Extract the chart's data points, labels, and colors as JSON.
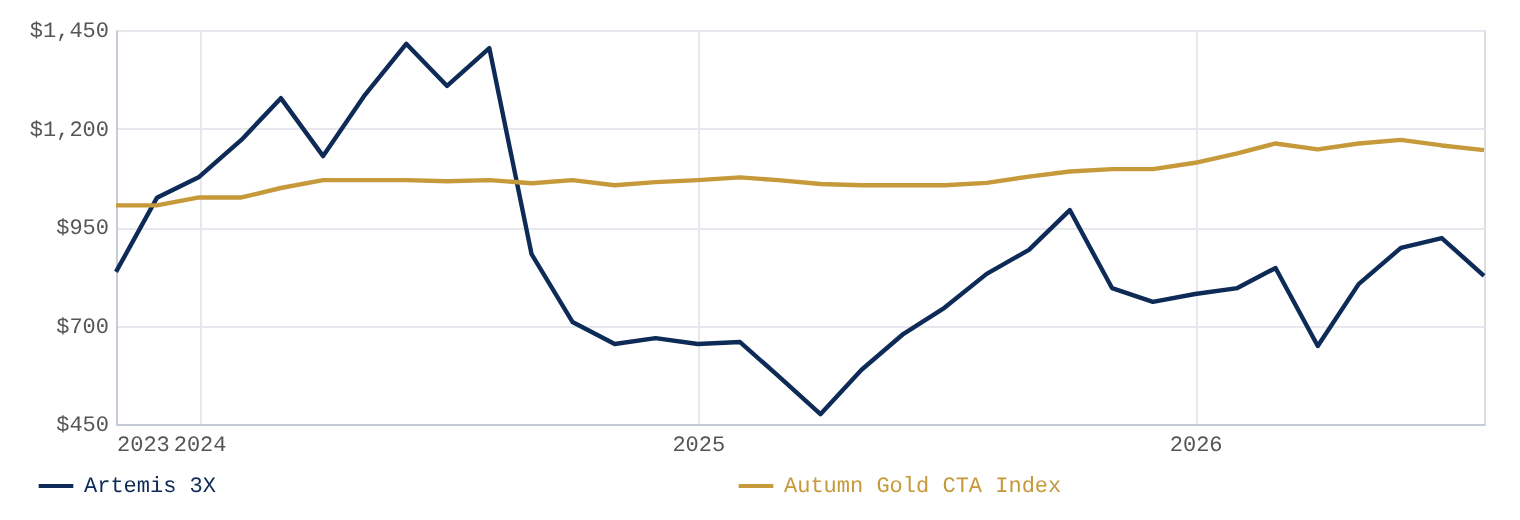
{
  "chart_data": {
    "type": "line",
    "x": [
      "2023-11-01",
      "2023-12-01",
      "2024-01-01",
      "2024-02-01",
      "2024-03-01",
      "2024-04-01",
      "2024-05-01",
      "2024-06-01",
      "2024-07-01",
      "2024-08-01",
      "2024-09-01",
      "2024-10-01",
      "2024-11-01",
      "2024-12-01",
      "2025-01-01",
      "2025-02-01",
      "2025-03-01",
      "2025-04-01",
      "2025-05-01",
      "2025-06-01",
      "2025-07-01",
      "2025-08-01",
      "2025-09-01",
      "2025-10-01",
      "2025-11-01",
      "2025-12-01",
      "2026-01-01",
      "2026-02-01",
      "2026-03-01",
      "2026-04-01",
      "2026-05-01",
      "2026-06-01",
      "2026-07-01",
      "2026-08-01"
    ],
    "series": [
      {
        "name": "Artemis 3X",
        "color": "#0d2b56",
        "values": [
          836,
          1024,
          1077,
          1171,
          1277,
          1130,
          1282,
          1415,
          1308,
          1404,
          881,
          709,
          653,
          668,
          653,
          658,
          572,
          475,
          587,
          679,
          745,
          831,
          892,
          993,
          795,
          760,
          780,
          795,
          846,
          648,
          805,
          897,
          922,
          826
        ]
      },
      {
        "name": "Autumn Gold CTA Index",
        "color": "#c6993a",
        "values": [
          1005,
          1005,
          1025,
          1025,
          1049,
          1069,
          1069,
          1069,
          1066,
          1069,
          1061,
          1069,
          1056,
          1064,
          1069,
          1076,
          1069,
          1059,
          1056,
          1056,
          1056,
          1062,
          1078,
          1091,
          1097,
          1097,
          1113,
          1137,
          1162,
          1147,
          1162,
          1171,
          1157,
          1145
        ]
      }
    ],
    "xlim": [
      "2023-11-01",
      "2026-08-01"
    ],
    "xticks": [
      {
        "value": "2023-11-01",
        "label": "2023"
      },
      {
        "value": "2024-01-01",
        "label": "2024"
      },
      {
        "value": "2025-01-01",
        "label": "2025"
      },
      {
        "value": "2026-01-01",
        "label": "2026"
      }
    ],
    "ylim": [
      450,
      1450
    ],
    "yticks": [
      {
        "value": 450,
        "label": "$450"
      },
      {
        "value": 700,
        "label": "$700"
      },
      {
        "value": 950,
        "label": "$950"
      },
      {
        "value": 1200,
        "label": "$1,200"
      },
      {
        "value": 1450,
        "label": "$1,450"
      }
    ],
    "grid": true,
    "legend": "bottom",
    "marker": "none",
    "line_style": "solid"
  }
}
